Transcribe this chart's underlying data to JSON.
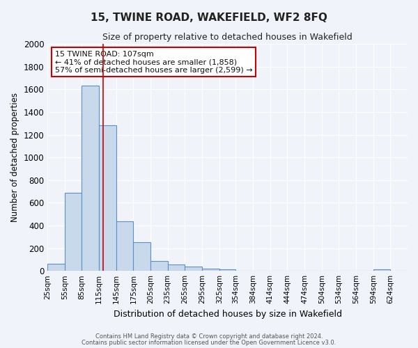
{
  "title": "15, TWINE ROAD, WAKEFIELD, WF2 8FQ",
  "subtitle": "Size of property relative to detached houses in Wakefield",
  "xlabel": "Distribution of detached houses by size in Wakefield",
  "ylabel": "Number of detached properties",
  "bar_color": "#c9d9ec",
  "bar_edge_color": "#5b8fc9",
  "background_color": "#f0f4fa",
  "grid_color": "#ffffff",
  "categories": [
    "25sqm",
    "55sqm",
    "85sqm",
    "115sqm",
    "145sqm",
    "175sqm",
    "205sqm",
    "235sqm",
    "265sqm",
    "295sqm",
    "325sqm",
    "354sqm",
    "384sqm",
    "414sqm",
    "444sqm",
    "474sqm",
    "504sqm",
    "534sqm",
    "564sqm",
    "594sqm",
    "624sqm"
  ],
  "values": [
    65,
    690,
    1635,
    1285,
    435,
    250,
    90,
    55,
    35,
    20,
    15,
    0,
    0,
    0,
    0,
    0,
    0,
    0,
    0,
    15,
    0
  ],
  "ylim": [
    0,
    2000
  ],
  "yticks": [
    0,
    200,
    400,
    600,
    800,
    1000,
    1200,
    1400,
    1600,
    1800,
    2000
  ],
  "red_line_x": 107,
  "annotation_title": "15 TWINE ROAD: 107sqm",
  "annotation_line1": "← 41% of detached houses are smaller (1,858)",
  "annotation_line2": "57% of semi-detached houses are larger (2,599) →",
  "annotation_box_color": "#ffffff",
  "annotation_border_color": "#cc0000",
  "footer1": "Contains HM Land Registry data © Crown copyright and database right 2024.",
  "footer2": "Contains public sector information licensed under the Open Government Licence v3.0.",
  "bin_edges": [
    10,
    40,
    70,
    100,
    130,
    160,
    190,
    220,
    250,
    280,
    310,
    339,
    369,
    399,
    429,
    459,
    489,
    519,
    549,
    579,
    609,
    639
  ]
}
